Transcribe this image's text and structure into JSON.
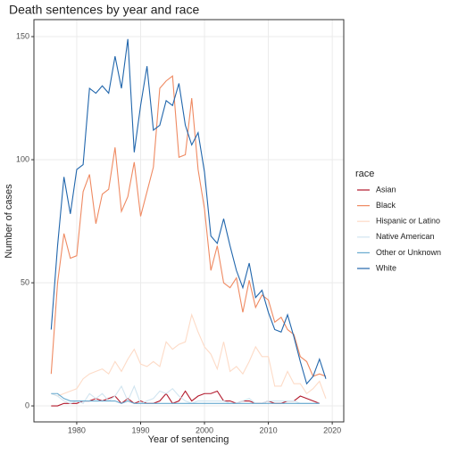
{
  "chart_data": {
    "type": "line",
    "title": "Death sentences by year and race",
    "x_label": "Year of sentencing",
    "y_label": "Number of cases",
    "legend_title": "race",
    "legend_position": "right",
    "grid": true,
    "xlim": [
      1973.3,
      2021.8
    ],
    "ylim": [
      -6.5,
      156.9
    ],
    "xticks": [
      1980,
      1990,
      2000,
      2010,
      2020
    ],
    "yticks": [
      0,
      50,
      100,
      150
    ],
    "x": [
      1976,
      1977,
      1978,
      1979,
      1980,
      1981,
      1982,
      1983,
      1984,
      1985,
      1986,
      1987,
      1988,
      1989,
      1990,
      1991,
      1992,
      1993,
      1994,
      1995,
      1996,
      1997,
      1998,
      1999,
      2000,
      2001,
      2002,
      2003,
      2004,
      2005,
      2006,
      2007,
      2008,
      2009,
      2010,
      2011,
      2012,
      2013,
      2014,
      2015,
      2016,
      2017,
      2018,
      2019
    ],
    "series": [
      {
        "name": "Asian",
        "color": "#b2182b",
        "values": [
          0,
          0,
          1,
          1,
          1,
          2,
          2,
          3,
          2,
          3,
          4,
          1,
          3,
          1,
          2,
          1,
          1,
          2,
          5,
          1,
          2,
          6,
          2,
          4,
          5,
          5,
          6,
          2,
          2,
          1,
          2,
          2,
          1,
          1,
          2,
          1,
          1,
          2,
          2,
          4,
          3,
          2,
          1,
          null
        ]
      },
      {
        "name": "Black",
        "color": "#ef8a62",
        "values": [
          13,
          50,
          70,
          60,
          61,
          87,
          94,
          74,
          86,
          88,
          105,
          79,
          85,
          99,
          77,
          87,
          97,
          129,
          132,
          134,
          101,
          102,
          125,
          96,
          80,
          55,
          65,
          50,
          48,
          52,
          38,
          51,
          40,
          45,
          43,
          34,
          36,
          31,
          29,
          20,
          18,
          12,
          13,
          12
        ]
      },
      {
        "name": "Hispanic or Latino",
        "color": "#fddbc7",
        "values": [
          5,
          4,
          5,
          6,
          7,
          11,
          13,
          14,
          15,
          13,
          18,
          14,
          19,
          23,
          17,
          16,
          18,
          16,
          26,
          23,
          25,
          26,
          37,
          30,
          24,
          21,
          15,
          26,
          14,
          16,
          13,
          18,
          24,
          20,
          20,
          8,
          8,
          14,
          9,
          9,
          5,
          7,
          10,
          3
        ]
      },
      {
        "name": "Native American",
        "color": "#d1e5f0",
        "values": [
          5,
          4,
          2,
          1,
          2,
          1,
          5,
          3,
          5,
          2,
          4,
          8,
          2,
          8,
          1,
          2,
          3,
          6,
          5,
          7,
          4,
          2,
          1,
          2,
          2,
          2,
          2,
          2,
          1,
          1,
          2,
          3,
          1,
          1,
          2,
          2,
          2,
          2,
          2,
          1,
          1,
          1,
          1,
          null
        ]
      },
      {
        "name": "Other or Unknown",
        "color": "#67a9cf",
        "values": [
          5,
          5,
          3,
          2,
          2,
          2,
          2,
          2,
          2,
          2,
          2,
          1,
          2,
          1,
          1,
          1,
          1,
          1,
          1,
          1,
          1,
          1,
          1,
          1,
          1,
          1,
          1,
          1,
          1,
          1,
          1,
          1,
          1,
          1,
          1,
          1,
          1,
          1,
          1,
          1,
          1,
          1,
          1,
          null
        ]
      },
      {
        "name": "White",
        "color": "#2166ac",
        "values": [
          31,
          65,
          93,
          78,
          96,
          98,
          129,
          127,
          130,
          127,
          142,
          129,
          149,
          103,
          122,
          138,
          112,
          114,
          124,
          122,
          131,
          114,
          106,
          111,
          95,
          69,
          66,
          76,
          65,
          55,
          48,
          58,
          44,
          47,
          38,
          31,
          30,
          37,
          28,
          18,
          9,
          12,
          19,
          11
        ]
      }
    ]
  }
}
